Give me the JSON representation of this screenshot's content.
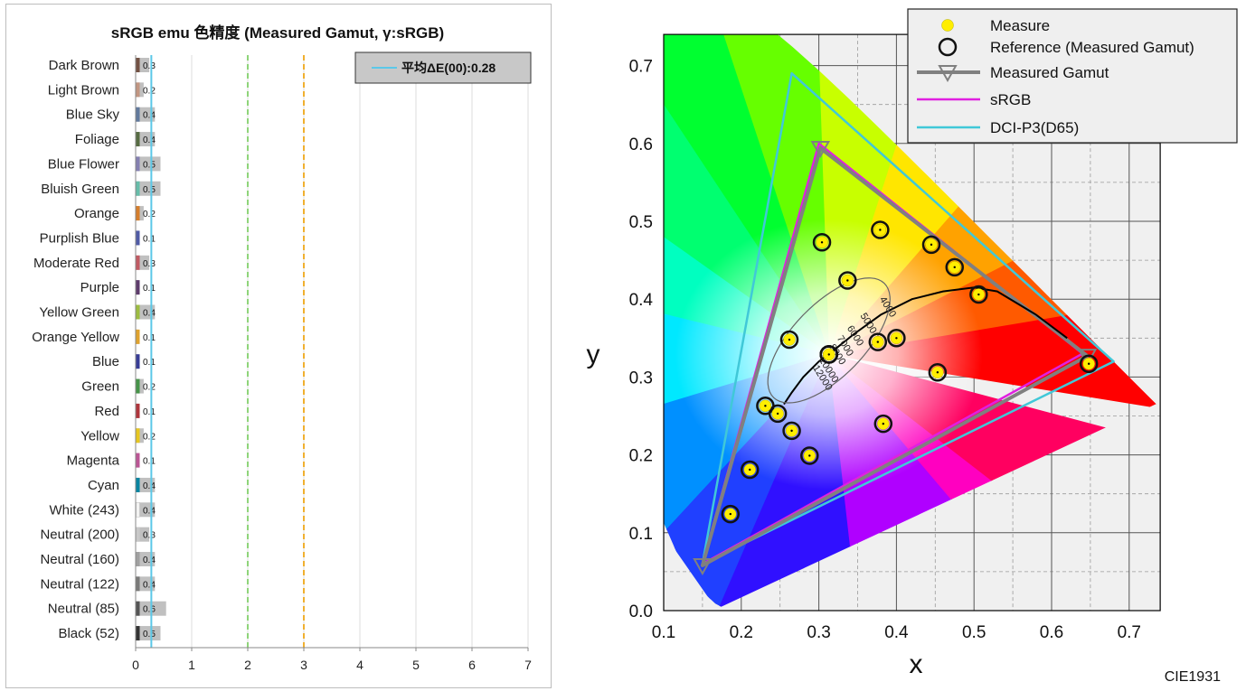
{
  "chart_data": [
    {
      "type": "bar",
      "orientation": "horizontal",
      "title": "sRGB emu 色精度 (Measured Gamut, γ:sRGB)",
      "categories": [
        "Dark Brown",
        "Light Brown",
        "Blue Sky",
        "Foliage",
        "Blue Flower",
        "Bluish Green",
        "Orange",
        "Purplish Blue",
        "Moderate Red",
        "Purple",
        "Yellow Green",
        "Orange Yellow",
        "Blue",
        "Green",
        "Red",
        "Yellow",
        "Magenta",
        "Cyan",
        "White (243)",
        "Neutral (200)",
        "Neutral (160)",
        "Neutral (122)",
        "Neutral (85)",
        "Black (52)"
      ],
      "values": [
        0.3,
        0.2,
        0.4,
        0.4,
        0.5,
        0.5,
        0.2,
        0.1,
        0.3,
        0.1,
        0.4,
        0.1,
        0.1,
        0.2,
        0.1,
        0.2,
        0.1,
        0.4,
        0.4,
        0.3,
        0.4,
        0.4,
        0.6,
        0.5
      ],
      "value_labels": [
        "0.3",
        "0.2",
        "0.4",
        "0.4",
        "0.5",
        "0.5",
        "0.2",
        "0.1",
        "0.3",
        "0.1",
        "0.4",
        "0.1",
        "0.1",
        "0.2",
        "0.1",
        "0.2",
        "0.1",
        "0.4",
        "0.4",
        "0.3",
        "0.4",
        "0.4",
        "0.6",
        "0.5"
      ],
      "patch_colors": [
        "#735244",
        "#c29682",
        "#627a9d",
        "#576c43",
        "#8580b1",
        "#67bdaa",
        "#d67e2c",
        "#505ba6",
        "#c15a63",
        "#5e3c6c",
        "#9dbc40",
        "#e0a32e",
        "#383d96",
        "#469449",
        "#af363c",
        "#e7c71f",
        "#bb5695",
        "#0885a1",
        "#f3f3f2",
        "#c8c8c8",
        "#a0a0a0",
        "#7a7a79",
        "#555555",
        "#343434"
      ],
      "bar_fill": "#c0c0c0",
      "xlim": [
        0,
        7
      ],
      "xticks": [
        "0",
        "1",
        "2",
        "3",
        "4",
        "5",
        "6",
        "7"
      ],
      "reference_lines": [
        {
          "value": 0.28,
          "color": "#5bc8e8",
          "style": "solid",
          "label": "平均ΔE(00):0.28"
        },
        {
          "value": 2,
          "color": "#8fd47a",
          "style": "dashed"
        },
        {
          "value": 3,
          "color": "#f0b030",
          "style": "dashed"
        }
      ],
      "legend": {
        "label": "平均ΔE(00):0.28",
        "position": "top-right"
      }
    },
    {
      "type": "scatter",
      "title": "CIE1931",
      "xlabel": "x",
      "ylabel": "y",
      "xlim": [
        0.1,
        0.74
      ],
      "ylim": [
        0.0,
        0.74
      ],
      "xticks": [
        "0.1",
        "0.2",
        "0.3",
        "0.4",
        "0.5",
        "0.6",
        "0.7"
      ],
      "yticks": [
        "0.0",
        "0.1",
        "0.2",
        "0.3",
        "0.4",
        "0.5",
        "0.6",
        "0.7"
      ],
      "grid": true,
      "series": [
        {
          "name": "Measure",
          "color": "#ffee00",
          "x": [
            0.4,
            0.376,
            0.247,
            0.337,
            0.265,
            0.262,
            0.506,
            0.211,
            0.453,
            0.288,
            0.379,
            0.475,
            0.186,
            0.304,
            0.648,
            0.445,
            0.383,
            0.231,
            0.313,
            0.313,
            0.313,
            0.313,
            0.313,
            0.313
          ],
          "y": [
            0.35,
            0.345,
            0.253,
            0.424,
            0.231,
            0.348,
            0.406,
            0.181,
            0.306,
            0.199,
            0.489,
            0.441,
            0.124,
            0.473,
            0.317,
            0.47,
            0.24,
            0.263,
            0.329,
            0.329,
            0.329,
            0.329,
            0.329,
            0.329
          ]
        },
        {
          "name": "Reference (Measured Gamut)",
          "color": "#111111",
          "x": [
            0.4,
            0.376,
            0.247,
            0.337,
            0.265,
            0.262,
            0.506,
            0.211,
            0.453,
            0.288,
            0.379,
            0.475,
            0.186,
            0.304,
            0.648,
            0.445,
            0.383,
            0.231,
            0.313,
            0.313,
            0.313,
            0.313,
            0.313,
            0.313
          ],
          "y": [
            0.35,
            0.345,
            0.253,
            0.424,
            0.231,
            0.348,
            0.406,
            0.181,
            0.306,
            0.199,
            0.489,
            0.441,
            0.124,
            0.473,
            0.317,
            0.47,
            0.24,
            0.263,
            0.329,
            0.329,
            0.329,
            0.329,
            0.329,
            0.329
          ]
        },
        {
          "name": "Measured Gamut",
          "color": "#808080",
          "x": [
            0.646,
            0.302,
            0.15
          ],
          "y": [
            0.327,
            0.594,
            0.058
          ]
        },
        {
          "name": "sRGB",
          "color": "#e020e0",
          "x": [
            0.64,
            0.3,
            0.15
          ],
          "y": [
            0.33,
            0.6,
            0.06
          ]
        },
        {
          "name": "DCI-P3(D65)",
          "color": "#40c8d8",
          "x": [
            0.68,
            0.265,
            0.15
          ],
          "y": [
            0.32,
            0.69,
            0.06
          ]
        }
      ],
      "cct_labels": [
        "4000",
        "5000",
        "6000",
        "7000",
        "8000",
        "10000",
        "12000"
      ],
      "legend": {
        "position": "top-right"
      }
    }
  ]
}
